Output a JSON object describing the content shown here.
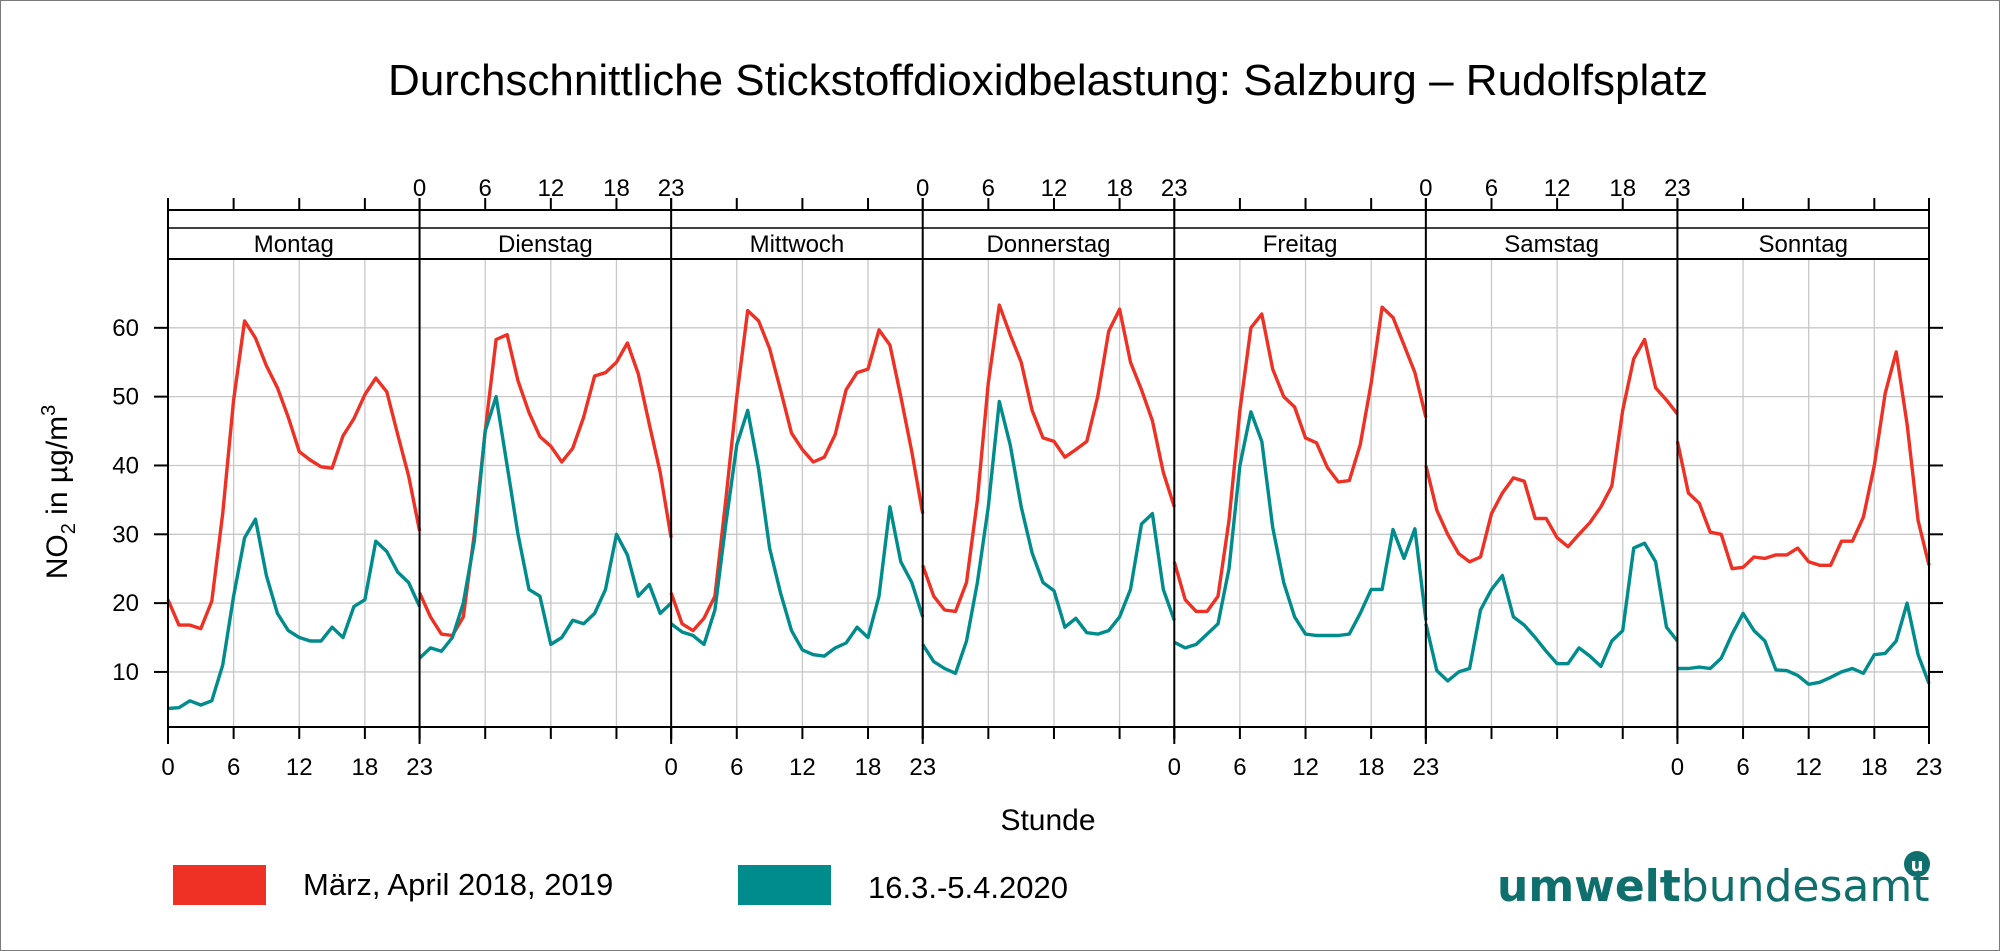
{
  "chart_data": {
    "type": "line",
    "title": "Durchschnittliche Stickstoffdioxidbelastung: Salzburg – Rudolfsplatz",
    "xlabel": "Stunde",
    "ylabel_main": "NO",
    "ylabel_sub": "2",
    "ylabel_rest": " in µg/m",
    "ylabel_sup": "3",
    "ylim": [
      2,
      70
    ],
    "yticks": [
      "10",
      "20",
      "30",
      "40",
      "50",
      "60"
    ],
    "xticks": [
      "0",
      "6",
      "12",
      "18",
      "23"
    ],
    "grid": true,
    "panels": [
      "Montag",
      "Dienstag",
      "Mittwoch",
      "Donnerstag",
      "Freitag",
      "Samstag",
      "Sonntag"
    ],
    "series": [
      {
        "name": "März, April 2018, 2019",
        "color": "#ee3124",
        "values": [
          [
            20.5,
            16.8,
            16.8,
            16.3,
            20.3,
            33.0,
            49.5,
            61.0,
            58.5,
            54.5,
            51.3,
            47.0,
            42.0,
            40.8,
            39.8,
            39.6,
            44.3,
            46.8,
            50.3,
            52.7,
            50.7,
            44.5,
            38.5,
            30.5
          ],
          [
            21.5,
            18.0,
            15.5,
            15.3,
            18.0,
            30.0,
            45.0,
            58.3,
            59.0,
            52.3,
            47.7,
            44.2,
            42.8,
            40.5,
            42.5,
            47.0,
            53.0,
            53.5,
            55.0,
            57.8,
            53.3,
            46.0,
            39.0,
            29.5
          ],
          [
            21.5,
            17.0,
            16.0,
            17.8,
            21.0,
            35.0,
            50.0,
            62.5,
            61.0,
            57.0,
            51.0,
            44.7,
            42.3,
            40.5,
            41.2,
            44.5,
            51.0,
            53.5,
            54.0,
            59.7,
            57.5,
            50.0,
            42.0,
            33.0
          ],
          [
            25.5,
            21.0,
            19.0,
            18.8,
            23.0,
            35.0,
            52.0,
            63.3,
            59.0,
            55.0,
            48.0,
            44.0,
            43.5,
            41.2,
            42.3,
            43.5,
            50.0,
            59.5,
            62.7,
            55.0,
            51.0,
            46.5,
            39.0,
            34.0
          ],
          [
            26.0,
            20.5,
            18.8,
            18.8,
            21.0,
            32.0,
            48.0,
            60.0,
            62.0,
            54.0,
            50.0,
            48.5,
            44.0,
            43.3,
            39.7,
            37.6,
            37.8,
            43.0,
            52.0,
            63.0,
            61.5,
            57.5,
            53.5,
            47.0
          ],
          [
            40.0,
            33.5,
            30.0,
            27.2,
            26.0,
            26.7,
            33.0,
            36.0,
            38.2,
            37.7,
            32.3,
            32.3,
            29.5,
            28.2,
            30.0,
            31.7,
            34.0,
            37.0,
            48.0,
            55.5,
            58.3,
            51.3,
            49.5,
            47.5
          ],
          [
            43.5,
            36.0,
            34.5,
            30.3,
            30.0,
            25.0,
            25.2,
            26.7,
            26.5,
            27.0,
            27.0,
            28.0,
            26.0,
            25.5,
            25.5,
            29.0,
            29.0,
            32.5,
            40.0,
            50.5,
            56.5,
            46.0,
            32.0,
            25.5
          ]
        ]
      },
      {
        "name": "16.3.-5.4.2020",
        "color": "#008c8c",
        "values": [
          [
            4.7,
            4.8,
            5.8,
            5.2,
            5.8,
            11.0,
            21.0,
            29.5,
            32.2,
            24.0,
            18.5,
            16.0,
            15.0,
            14.5,
            14.5,
            16.5,
            15.0,
            19.5,
            20.5,
            29.0,
            27.5,
            24.5,
            23.0,
            19.5
          ],
          [
            12.0,
            13.5,
            13.0,
            15.0,
            20.0,
            29.0,
            45.0,
            50.0,
            40.0,
            30.0,
            22.0,
            21.0,
            14.0,
            15.0,
            17.5,
            17.0,
            18.5,
            22.0,
            30.0,
            27.0,
            21.0,
            22.7,
            18.5,
            20.0
          ],
          [
            17.0,
            15.8,
            15.3,
            14.0,
            19.0,
            31.5,
            43.0,
            48.0,
            39.5,
            28.0,
            21.5,
            16.0,
            13.2,
            12.5,
            12.3,
            13.5,
            14.2,
            16.5,
            15.0,
            21.0,
            34.0,
            26.0,
            23.0,
            18.0
          ],
          [
            14.0,
            11.5,
            10.5,
            9.8,
            14.5,
            23.0,
            34.0,
            49.3,
            43.0,
            34.0,
            27.3,
            23.0,
            21.8,
            16.5,
            17.8,
            15.7,
            15.5,
            16.0,
            18.0,
            22.0,
            31.5,
            33.0,
            22.0,
            17.5
          ],
          [
            14.3,
            13.5,
            14.0,
            15.5,
            17.0,
            25.0,
            40.0,
            47.8,
            43.5,
            31.0,
            23.0,
            18.0,
            15.5,
            15.3,
            15.3,
            15.3,
            15.5,
            18.5,
            22.0,
            22.0,
            30.7,
            26.5,
            30.8,
            17.5
          ],
          [
            17.0,
            10.2,
            8.7,
            10.0,
            10.5,
            19.0,
            22.0,
            24.0,
            18.0,
            16.8,
            15.0,
            13.0,
            11.2,
            11.2,
            13.5,
            12.3,
            10.8,
            14.5,
            16.0,
            28.0,
            28.7,
            26.0,
            16.5,
            14.5
          ],
          [
            10.5,
            10.5,
            10.7,
            10.5,
            12.0,
            15.5,
            18.5,
            16.0,
            14.5,
            10.3,
            10.2,
            9.5,
            8.2,
            8.5,
            9.2,
            10.0,
            10.5,
            9.8,
            12.5,
            12.7,
            14.5,
            20.0,
            12.5,
            8.3
          ]
        ]
      }
    ]
  },
  "legend": {
    "items": [
      {
        "label": "März, April 2018, 2019",
        "color": "#ee3124"
      },
      {
        "label": "16.3.-5.4.2020",
        "color": "#008c8c"
      }
    ]
  },
  "logo": {
    "part1": "umwelt",
    "part2": "bundesamt",
    "mark": "u",
    "color": "#0e6f6d"
  }
}
